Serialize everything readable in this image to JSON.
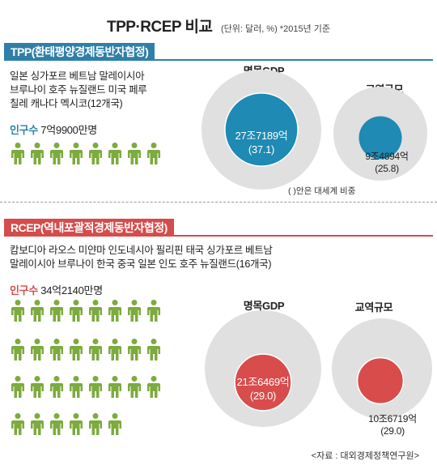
{
  "header": {
    "title": "TPP·RCEP 비교",
    "unit": "(단위: 달러, %)  *2015년 기준"
  },
  "colors": {
    "tpp_accent": "#2f7fa8",
    "rcep_accent": "#d64b4b",
    "outer_circle": "#e0e0e0",
    "person": "#7cab3e",
    "tpp_inner": "#1f8ab3",
    "rcep_inner": "#d94c4c"
  },
  "icons": {
    "person": "person-icon"
  },
  "footer": {
    "source": "<자료 : 대외경제정책연구원>"
  },
  "chart_data": [
    {
      "type": "bubble",
      "group": "TPP",
      "banner": "TPP(환태평양경제동반자협정)",
      "members_line1": "일본 싱가포르 베트남 말레이시아",
      "members_line2": "브루나이 호주 뉴질랜드 미국 페루",
      "members_line3": "칠레 캐나다 멕시코(12개국)",
      "population_label": "인구수",
      "population": "7억9900만명",
      "person_icons": 8,
      "gdp": {
        "label": "명목GDP",
        "value": "27조7189억",
        "share": "(37.1)",
        "share_pct": 37.1
      },
      "trade": {
        "label": "교역규모",
        "value": "9조4894억",
        "share": "(25.8)",
        "share_pct": 25.8
      },
      "note": "( )안은 대세계 비중"
    },
    {
      "type": "bubble",
      "group": "RCEP",
      "banner": "RCEP(역내포괄적경제동반자협정)",
      "members_line1": "캄보디아 라오스 미얀마 인도네시아 필리핀 태국 싱가포르 베트남",
      "members_line2": "말레이시아 브루나이 한국 중국 일본 인도 호주 뉴질랜드(16개국)",
      "population_label": "인구수",
      "population": "34억2140만명",
      "person_icons": 30,
      "gdp": {
        "label": "명목GDP",
        "value": "21조6469억",
        "share": "(29.0)",
        "share_pct": 29.0
      },
      "trade": {
        "label": "교역규모",
        "value": "10조6719억",
        "share": "(29.0)",
        "share_pct": 29.0
      }
    }
  ]
}
